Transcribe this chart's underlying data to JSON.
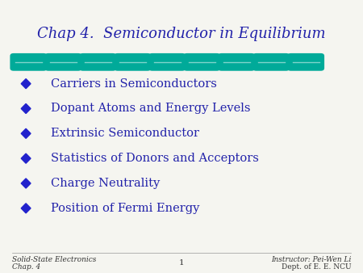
{
  "title": "Chap 4.  Semiconductor in Equilibrium",
  "title_color": "#2222AA",
  "title_fontsize": 13,
  "bullet_items": [
    "Carriers in Semiconductors",
    "Dopant Atoms and Energy Levels",
    "Extrinsic Semiconductor",
    "Statistics of Donors and Acceptors",
    "Charge Neutrality",
    "Position of Fermi Energy"
  ],
  "bullet_color": "#2222AA",
  "bullet_fontsize": 10.5,
  "diamond_color": "#2222CC",
  "teal_color": "#00AA99",
  "bg_color": "#F5F5F0",
  "footer_left_line1": "Solid-State Electronics",
  "footer_left_line2": "Chap. 4",
  "footer_center": "1",
  "footer_right_line1": "Instructor: Pei-Wen Li",
  "footer_right_line2": "Dept. of E. E. NCU",
  "footer_fontsize": 6.5
}
